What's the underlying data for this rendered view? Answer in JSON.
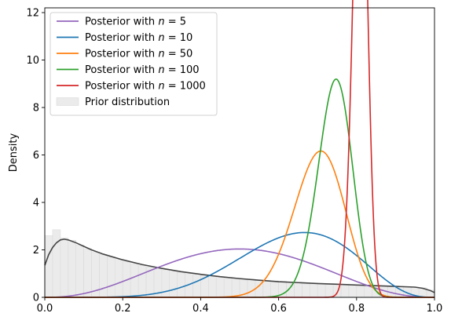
{
  "chart_data": {
    "type": "line",
    "title": "",
    "xlabel": "",
    "ylabel": "Density",
    "xlim": [
      0,
      1
    ],
    "ylim": [
      0,
      12.2
    ],
    "xticks": [
      "0.0",
      "0.2",
      "0.4",
      "0.6",
      "0.8",
      "1.0"
    ],
    "yticks": [
      "0",
      "2",
      "4",
      "6",
      "8",
      "10",
      "12"
    ],
    "grid": false,
    "legend_position": "top-left",
    "series": [
      {
        "name": "Posterior with n = 5",
        "label_prefix": "Posterior with ",
        "label_var": "n",
        "label_eq": " = ",
        "label_num": "5",
        "color": "#9467bd",
        "alpha": 3.5,
        "beta": 3.5
      },
      {
        "name": "Posterior with n = 10",
        "label_prefix": "Posterior with ",
        "label_var": "n",
        "label_eq": " = ",
        "label_num": "10",
        "color": "#1f77b4",
        "alpha": 7.0,
        "beta": 4.0
      },
      {
        "name": "Posterior with n = 50",
        "label_prefix": "Posterior with ",
        "label_var": "n",
        "label_eq": " = ",
        "label_num": "50",
        "color": "#ff7f0e",
        "alpha": 35.0,
        "beta": 15.0
      },
      {
        "name": "Posterior with n = 100",
        "label_prefix": "Posterior with ",
        "label_var": "n",
        "label_eq": " = ",
        "label_num": "100",
        "color": "#2ca02c",
        "alpha": 75.0,
        "beta": 26.0
      },
      {
        "name": "Posterior with n = 1000",
        "label_prefix": "Posterior with ",
        "label_var": "n",
        "label_eq": " = ",
        "label_num": "1000",
        "color": "#d62728",
        "alpha": 380.0,
        "beta": 90.0
      }
    ],
    "prior": {
      "name": "Prior distribution",
      "color": "#cccccc",
      "line_color": "#444444",
      "hist_bins": [
        [
          0.0,
          0.02,
          2.6
        ],
        [
          0.02,
          0.04,
          2.85
        ],
        [
          0.04,
          0.06,
          2.5
        ],
        [
          0.06,
          0.08,
          2.4
        ],
        [
          0.08,
          0.1,
          2.2
        ],
        [
          0.1,
          0.12,
          2.05
        ],
        [
          0.12,
          0.14,
          1.9
        ],
        [
          0.14,
          0.16,
          1.8
        ],
        [
          0.16,
          0.18,
          1.7
        ],
        [
          0.18,
          0.2,
          1.6
        ],
        [
          0.2,
          0.22,
          1.5
        ],
        [
          0.22,
          0.24,
          1.42
        ],
        [
          0.24,
          0.26,
          1.35
        ],
        [
          0.26,
          0.28,
          1.28
        ],
        [
          0.28,
          0.3,
          1.22
        ],
        [
          0.3,
          0.32,
          1.16
        ],
        [
          0.32,
          0.34,
          1.1
        ],
        [
          0.34,
          0.36,
          1.05
        ],
        [
          0.36,
          0.38,
          1.0
        ],
        [
          0.38,
          0.4,
          0.97
        ],
        [
          0.4,
          0.42,
          0.93
        ],
        [
          0.42,
          0.44,
          0.9
        ],
        [
          0.44,
          0.46,
          0.87
        ],
        [
          0.46,
          0.48,
          0.84
        ],
        [
          0.48,
          0.5,
          0.81
        ],
        [
          0.5,
          0.52,
          0.78
        ],
        [
          0.52,
          0.54,
          0.76
        ],
        [
          0.54,
          0.56,
          0.73
        ],
        [
          0.56,
          0.58,
          0.71
        ],
        [
          0.58,
          0.6,
          0.69
        ],
        [
          0.6,
          0.62,
          0.67
        ],
        [
          0.62,
          0.64,
          0.65
        ],
        [
          0.64,
          0.66,
          0.63
        ],
        [
          0.66,
          0.68,
          0.61
        ],
        [
          0.68,
          0.7,
          0.6
        ],
        [
          0.7,
          0.72,
          0.58
        ],
        [
          0.72,
          0.74,
          0.57
        ],
        [
          0.74,
          0.76,
          0.55
        ],
        [
          0.76,
          0.78,
          0.54
        ],
        [
          0.78,
          0.8,
          0.53
        ],
        [
          0.8,
          0.82,
          0.52
        ],
        [
          0.82,
          0.84,
          0.5
        ],
        [
          0.84,
          0.86,
          0.49
        ],
        [
          0.86,
          0.88,
          0.48
        ],
        [
          0.88,
          0.9,
          0.47
        ],
        [
          0.9,
          0.92,
          0.46
        ],
        [
          0.92,
          0.94,
          0.45
        ],
        [
          0.94,
          0.96,
          0.43
        ],
        [
          0.96,
          0.98,
          0.4
        ],
        [
          0.98,
          1.0,
          0.3
        ]
      ],
      "curve": [
        [
          0.0,
          1.35
        ],
        [
          0.01,
          1.8
        ],
        [
          0.02,
          2.1
        ],
        [
          0.03,
          2.3
        ],
        [
          0.04,
          2.42
        ],
        [
          0.05,
          2.45
        ],
        [
          0.06,
          2.42
        ],
        [
          0.08,
          2.3
        ],
        [
          0.1,
          2.15
        ],
        [
          0.12,
          2.0
        ],
        [
          0.15,
          1.82
        ],
        [
          0.2,
          1.58
        ],
        [
          0.25,
          1.38
        ],
        [
          0.3,
          1.22
        ],
        [
          0.35,
          1.08
        ],
        [
          0.4,
          0.97
        ],
        [
          0.45,
          0.87
        ],
        [
          0.5,
          0.79
        ],
        [
          0.55,
          0.72
        ],
        [
          0.6,
          0.66
        ],
        [
          0.65,
          0.62
        ],
        [
          0.7,
          0.58
        ],
        [
          0.75,
          0.55
        ],
        [
          0.8,
          0.52
        ],
        [
          0.85,
          0.49
        ],
        [
          0.9,
          0.46
        ],
        [
          0.95,
          0.43
        ],
        [
          0.97,
          0.38
        ],
        [
          0.99,
          0.28
        ],
        [
          1.0,
          0.2
        ]
      ]
    }
  }
}
